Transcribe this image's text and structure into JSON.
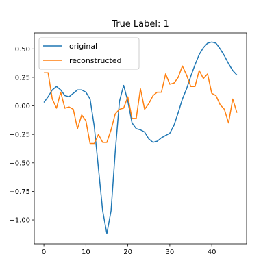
{
  "chart_data": {
    "type": "line",
    "title": "True Label: 1",
    "xlabel": "",
    "ylabel": "",
    "xlim": [
      -2.3,
      48.3
    ],
    "ylim": [
      -1.21,
      0.64
    ],
    "xticks": [
      0,
      10,
      20,
      30,
      40
    ],
    "yticks": [
      0.5,
      0.25,
      0.0,
      -0.25,
      -0.5,
      -0.75,
      -1.0
    ],
    "ytick_labels": [
      "0.50",
      "0.25",
      "0.00",
      "−0.25",
      "−0.50",
      "−0.75",
      "−1.00"
    ],
    "legend_position": "upper-left",
    "grid": false,
    "series": [
      {
        "name": "original",
        "color": "#1f77b4",
        "x": [
          0,
          1,
          2,
          3,
          4,
          5,
          6,
          7,
          8,
          9,
          10,
          11,
          12,
          13,
          14,
          15,
          16,
          17,
          18,
          19,
          20,
          21,
          22,
          23,
          24,
          25,
          26,
          27,
          28,
          29,
          30,
          31,
          32,
          33,
          34,
          35,
          36,
          37,
          38,
          39,
          40,
          41,
          42,
          43,
          44,
          45,
          46
        ],
        "values": [
          0.03,
          0.08,
          0.14,
          0.17,
          0.14,
          0.09,
          0.08,
          0.11,
          0.14,
          0.14,
          0.12,
          0.06,
          -0.18,
          -0.55,
          -0.92,
          -1.12,
          -0.92,
          -0.4,
          0.04,
          0.18,
          0.04,
          -0.15,
          -0.2,
          -0.21,
          -0.23,
          -0.29,
          -0.32,
          -0.31,
          -0.28,
          -0.26,
          -0.24,
          -0.17,
          -0.06,
          0.06,
          0.15,
          0.26,
          0.36,
          0.45,
          0.51,
          0.55,
          0.56,
          0.55,
          0.5,
          0.44,
          0.37,
          0.31,
          0.27
        ]
      },
      {
        "name": "reconstructed",
        "color": "#ff7f0e",
        "x": [
          0,
          1,
          2,
          3,
          4,
          5,
          6,
          7,
          8,
          9,
          10,
          11,
          12,
          13,
          14,
          15,
          16,
          17,
          18,
          19,
          20,
          21,
          22,
          23,
          24,
          25,
          26,
          27,
          28,
          29,
          30,
          31,
          32,
          33,
          34,
          35,
          36,
          37,
          38,
          39,
          40,
          41,
          42,
          43,
          44,
          45,
          46
        ],
        "values": [
          0.29,
          0.29,
          0.06,
          -0.02,
          0.12,
          -0.02,
          -0.01,
          -0.03,
          -0.2,
          -0.08,
          -0.13,
          -0.33,
          -0.33,
          -0.25,
          -0.32,
          -0.32,
          -0.21,
          -0.07,
          -0.03,
          -0.02,
          0.08,
          -0.11,
          -0.11,
          0.15,
          -0.03,
          0.02,
          0.09,
          0.12,
          0.12,
          0.28,
          0.19,
          0.2,
          0.25,
          0.35,
          0.27,
          0.17,
          0.17,
          0.31,
          0.24,
          0.28,
          0.11,
          0.09,
          0.01,
          -0.03,
          -0.15,
          0.06,
          -0.06
        ]
      }
    ]
  }
}
